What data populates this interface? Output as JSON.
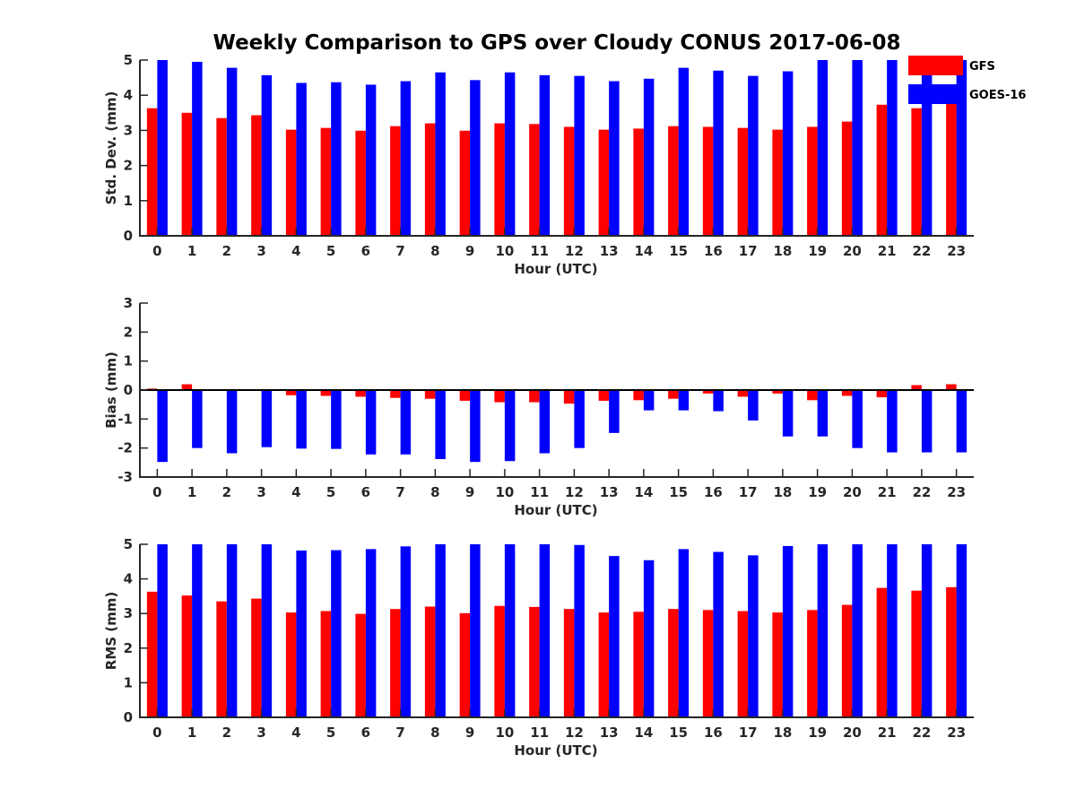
{
  "title": "Weekly Comparison to GPS over Cloudy CONUS 2017-06-08",
  "legend": {
    "placement": "top-right",
    "entries": [
      {
        "name": "GFS",
        "color": "#ff0000"
      },
      {
        "name": "GOES-16",
        "color": "#0000ff"
      }
    ]
  },
  "chart_data": [
    {
      "type": "bar",
      "categories": [
        "0",
        "1",
        "2",
        "3",
        "4",
        "5",
        "6",
        "7",
        "8",
        "9",
        "10",
        "11",
        "12",
        "13",
        "14",
        "15",
        "16",
        "17",
        "18",
        "19",
        "20",
        "21",
        "22",
        "23"
      ],
      "xlabel": "Hour (UTC)",
      "ylabel": "Std. Dev. (mm)",
      "ylim": [
        0,
        5
      ],
      "yticks": [
        0,
        1,
        2,
        3,
        4,
        5
      ],
      "series": [
        {
          "name": "GFS",
          "color": "#ff0000",
          "values": [
            3.63,
            3.5,
            3.35,
            3.43,
            3.02,
            3.07,
            2.99,
            3.12,
            3.2,
            2.99,
            3.2,
            3.18,
            3.1,
            3.02,
            3.05,
            3.12,
            3.1,
            3.07,
            3.02,
            3.1,
            3.25,
            3.73,
            3.63,
            3.76
          ]
        },
        {
          "name": "GOES-16",
          "color": "#0000ff",
          "values": [
            5.0,
            4.95,
            4.78,
            4.57,
            4.35,
            4.37,
            4.3,
            4.4,
            4.65,
            4.43,
            4.65,
            4.57,
            4.55,
            4.4,
            4.47,
            4.78,
            4.7,
            4.55,
            4.68,
            5.0,
            5.0,
            5.0,
            5.0,
            5.0
          ]
        }
      ]
    },
    {
      "type": "bar",
      "categories": [
        "0",
        "1",
        "2",
        "3",
        "4",
        "5",
        "6",
        "7",
        "8",
        "9",
        "10",
        "11",
        "12",
        "13",
        "14",
        "15",
        "16",
        "17",
        "18",
        "19",
        "20",
        "21",
        "22",
        "23"
      ],
      "xlabel": "Hour (UTC)",
      "ylabel": "Bias (mm)",
      "ylim": [
        -3,
        3
      ],
      "yticks": [
        -3,
        -2,
        -1,
        0,
        1,
        2,
        3
      ],
      "zero_line": true,
      "series": [
        {
          "name": "GFS",
          "color": "#ff0000",
          "values": [
            0.05,
            0.2,
            0.02,
            0.03,
            -0.18,
            -0.2,
            -0.23,
            -0.27,
            -0.3,
            -0.37,
            -0.42,
            -0.42,
            -0.47,
            -0.37,
            -0.35,
            -0.3,
            -0.12,
            -0.23,
            -0.12,
            -0.35,
            -0.2,
            -0.25,
            0.17,
            0.2
          ]
        },
        {
          "name": "GOES-16",
          "color": "#0000ff",
          "values": [
            -2.48,
            -2.0,
            -2.18,
            -1.97,
            -2.02,
            -2.03,
            -2.22,
            -2.22,
            -2.38,
            -2.48,
            -2.45,
            -2.18,
            -2.0,
            -1.48,
            -0.7,
            -0.7,
            -0.73,
            -1.05,
            -1.6,
            -1.6,
            -2.0,
            -2.15,
            -2.15,
            -2.15
          ]
        }
      ]
    },
    {
      "type": "bar",
      "categories": [
        "0",
        "1",
        "2",
        "3",
        "4",
        "5",
        "6",
        "7",
        "8",
        "9",
        "10",
        "11",
        "12",
        "13",
        "14",
        "15",
        "16",
        "17",
        "18",
        "19",
        "20",
        "21",
        "22",
        "23"
      ],
      "xlabel": "Hour (UTC)",
      "ylabel": "RMS (mm)",
      "ylim": [
        0,
        5
      ],
      "yticks": [
        0,
        1,
        2,
        3,
        4,
        5
      ],
      "series": [
        {
          "name": "GFS",
          "color": "#ff0000",
          "values": [
            3.63,
            3.52,
            3.35,
            3.43,
            3.03,
            3.07,
            2.99,
            3.13,
            3.2,
            3.01,
            3.22,
            3.19,
            3.13,
            3.03,
            3.05,
            3.13,
            3.1,
            3.07,
            3.03,
            3.1,
            3.25,
            3.74,
            3.66,
            3.76
          ]
        },
        {
          "name": "GOES-16",
          "color": "#0000ff",
          "values": [
            5.0,
            5.0,
            5.0,
            5.0,
            4.82,
            4.83,
            4.86,
            4.94,
            5.0,
            5.0,
            5.0,
            5.0,
            4.98,
            4.66,
            4.54,
            4.86,
            4.78,
            4.68,
            4.95,
            5.0,
            5.0,
            5.0,
            5.0,
            5.0
          ]
        }
      ]
    }
  ]
}
